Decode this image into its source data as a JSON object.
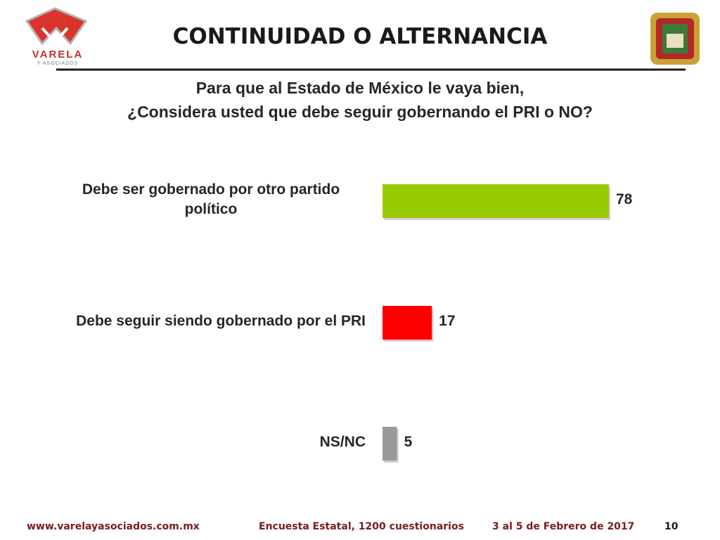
{
  "logo": {
    "name": "VARELA",
    "tagline": "Y ASOCIADOS"
  },
  "chart_data": {
    "type": "bar",
    "orientation": "horizontal",
    "title": "CONTINUIDAD O ALTERNANCIA",
    "subtitle": [
      "Para que al Estado de México le vaya bien,",
      "¿Considera usted que debe seguir gobernando el PRI o NO?"
    ],
    "categories": [
      "Debe ser gobernado por otro partido político",
      "Debe seguir siendo gobernado por el PRI",
      "NS/NC"
    ],
    "values": [
      78,
      17,
      5
    ],
    "colors": [
      "#99cc00",
      "#ff0000",
      "#999999"
    ]
  },
  "footer": {
    "website": "www.varelayasociados.com.mx",
    "survey": "Encuesta Estatal, 1200 cuestionarios",
    "date": "3 al 5 de Febrero de 2017",
    "page": "10"
  }
}
